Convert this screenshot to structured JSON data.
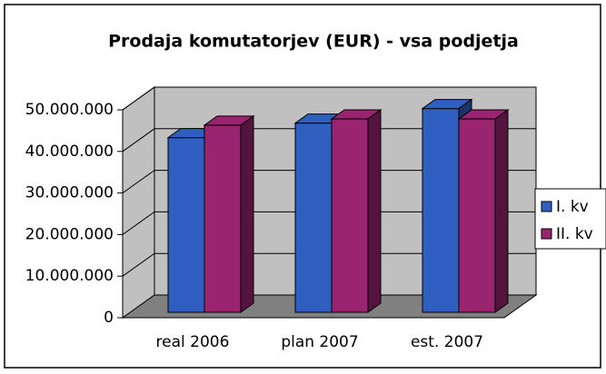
{
  "chart_data": {
    "type": "bar3d",
    "title": "Prodaja komutatorjev (EUR) - vsa podjetja",
    "categories": [
      "real 2006",
      "plan 2007",
      "est. 2007"
    ],
    "series": [
      {
        "name": "I. kv",
        "color": "#2f5fc0",
        "values": [
          42000000,
          45500000,
          49000000
        ]
      },
      {
        "name": "II. kv",
        "color": "#9a2470",
        "values": [
          45000000,
          46500000,
          46500000
        ]
      }
    ],
    "ylim": [
      0,
      50000000
    ],
    "yticks": [
      0,
      {
        "value": 10000000,
        "label": "10.000.000"
      },
      {
        "value": 20000000,
        "label": "20.000.000"
      },
      {
        "value": 30000000,
        "label": "30.000.000"
      },
      {
        "value": 40000000,
        "label": "40.000.000"
      },
      {
        "value": 50000000,
        "label": "50.000.000"
      }
    ],
    "grid": true,
    "legend": "right"
  }
}
